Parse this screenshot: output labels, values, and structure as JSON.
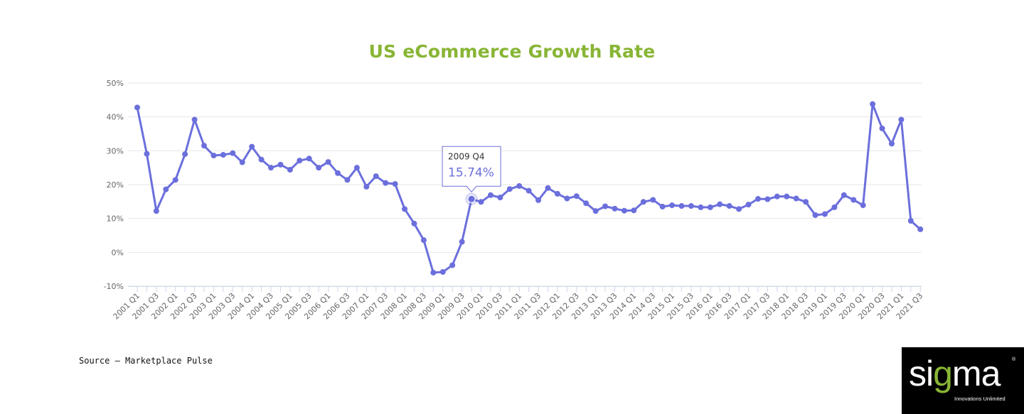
{
  "chart_data": {
    "type": "line",
    "title": "US eCommerce Growth Rate",
    "xlabel": "",
    "ylabel": "",
    "ylim": [
      -10,
      50
    ],
    "yticks": [
      "50%",
      "40%",
      "30%",
      "20%",
      "10%",
      "0%",
      "-10%"
    ],
    "ytick_values": [
      50,
      40,
      30,
      20,
      10,
      0,
      -10
    ],
    "grid": true,
    "series_color": "#6b6fdc",
    "categories": [
      "2001 Q1",
      "2001 Q2",
      "2001 Q3",
      "2001 Q4",
      "2002 Q1",
      "2002 Q2",
      "2002 Q3",
      "2002 Q4",
      "2003 Q1",
      "2003 Q2",
      "2003 Q3",
      "2003 Q4",
      "2004 Q1",
      "2004 Q2",
      "2004 Q3",
      "2004 Q4",
      "2005 Q1",
      "2005 Q2",
      "2005 Q3",
      "2005 Q4",
      "2006 Q1",
      "2006 Q2",
      "2006 Q3",
      "2006 Q4",
      "2007 Q1",
      "2007 Q2",
      "2007 Q3",
      "2007 Q4",
      "2008 Q1",
      "2008 Q2",
      "2008 Q3",
      "2008 Q4",
      "2009 Q1",
      "2009 Q2",
      "2009 Q3",
      "2009 Q4",
      "2010 Q1",
      "2010 Q2",
      "2010 Q3",
      "2010 Q4",
      "2011 Q1",
      "2011 Q2",
      "2011 Q3",
      "2011 Q4",
      "2012 Q1",
      "2012 Q2",
      "2012 Q3",
      "2012 Q4",
      "2013 Q1",
      "2013 Q2",
      "2013 Q3",
      "2013 Q4",
      "2014 Q1",
      "2014 Q2",
      "2014 Q3",
      "2014 Q4",
      "2015 Q1",
      "2015 Q2",
      "2015 Q3",
      "2015 Q4",
      "2016 Q1",
      "2016 Q2",
      "2016 Q3",
      "2016 Q4",
      "2017 Q1",
      "2017 Q2",
      "2017 Q3",
      "2017 Q4",
      "2018 Q1",
      "2018 Q2",
      "2018 Q3",
      "2018 Q4",
      "2019 Q1",
      "2019 Q2",
      "2019 Q3",
      "2019 Q4",
      "2020 Q1",
      "2020 Q2",
      "2020 Q3",
      "2020 Q4",
      "2021 Q1",
      "2021 Q2",
      "2021 Q3"
    ],
    "labeled_categories": [
      "2001 Q1",
      "2001 Q3",
      "2002 Q1",
      "2002 Q3",
      "2003 Q1",
      "2003 Q3",
      "2004 Q1",
      "2004 Q3",
      "2005 Q1",
      "2005 Q3",
      "2006 Q1",
      "2006 Q3",
      "2007 Q1",
      "2007 Q3",
      "2008 Q1",
      "2008 Q3",
      "2009 Q1",
      "2009 Q3",
      "2010 Q1",
      "2010 Q3",
      "2011 Q1",
      "2011 Q3",
      "2012 Q1",
      "2012 Q3",
      "2013 Q1",
      "2013 Q3",
      "2014 Q1",
      "2014 Q3",
      "2015 Q1",
      "2015 Q3",
      "2016 Q1",
      "2016 Q3",
      "2017 Q1",
      "2017 Q3",
      "2018 Q1",
      "2018 Q3",
      "2019 Q1",
      "2019 Q3",
      "2020 Q1",
      "2020 Q3",
      "2021 Q1",
      "2021 Q3"
    ],
    "values": [
      42.8,
      29.1,
      12.2,
      18.6,
      21.4,
      29.0,
      39.2,
      31.5,
      28.6,
      28.8,
      29.3,
      26.6,
      31.2,
      27.4,
      25.0,
      25.9,
      24.4,
      27.1,
      27.7,
      25.0,
      26.7,
      23.4,
      21.4,
      25.0,
      19.4,
      22.5,
      20.5,
      20.2,
      12.8,
      8.5,
      3.6,
      -6.0,
      -5.8,
      -3.8,
      3.1,
      15.74,
      14.9,
      16.9,
      16.2,
      18.7,
      19.6,
      18.2,
      15.4,
      19.0,
      17.3,
      15.9,
      16.6,
      14.5,
      12.2,
      13.6,
      12.9,
      12.3,
      12.4,
      14.9,
      15.5,
      13.5,
      13.9,
      13.7,
      13.7,
      13.3,
      13.3,
      14.2,
      13.7,
      12.8,
      14.1,
      15.8,
      15.7,
      16.5,
      16.5,
      15.9,
      14.9,
      11.0,
      11.3,
      13.3,
      16.9,
      15.5,
      13.9,
      43.8,
      36.6,
      32.1,
      39.2,
      9.3,
      6.8
    ],
    "tooltip": {
      "category": "2009 Q4",
      "value": "15.74%"
    }
  },
  "source": "Source – Marketplace Pulse",
  "logo": {
    "word": "sigma",
    "tagline": "Innovations Unlimited",
    "reg": "®"
  }
}
